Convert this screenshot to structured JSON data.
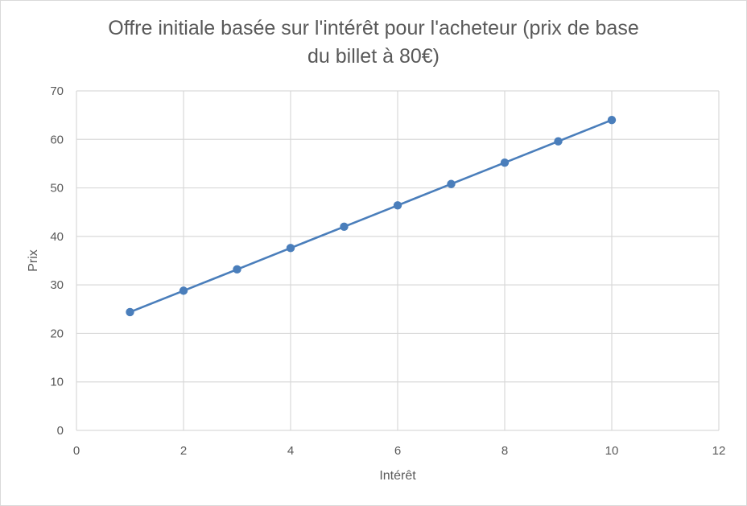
{
  "chart_data": {
    "type": "scatter",
    "title_lines": [
      "Offre initiale basée sur l'intérêt pour l'acheteur (prix de base",
      "du billet à 80€)"
    ],
    "xlabel": "Intérêt",
    "ylabel": "Prix",
    "xlim": [
      0,
      12
    ],
    "ylim": [
      0,
      70
    ],
    "x_ticks": [
      0,
      2,
      4,
      6,
      8,
      10,
      12
    ],
    "y_ticks": [
      0,
      10,
      20,
      30,
      40,
      50,
      60,
      70
    ],
    "grid": true,
    "legend": "none",
    "series": [
      {
        "color": "#4a7ebb",
        "marker": "circle",
        "line": "straight",
        "x": [
          1,
          2,
          3,
          4,
          5,
          6,
          7,
          8,
          9,
          10
        ],
        "y": [
          24.4,
          28.8,
          33.2,
          37.6,
          42.0,
          46.4,
          50.8,
          55.2,
          59.6,
          64.0
        ]
      }
    ]
  }
}
